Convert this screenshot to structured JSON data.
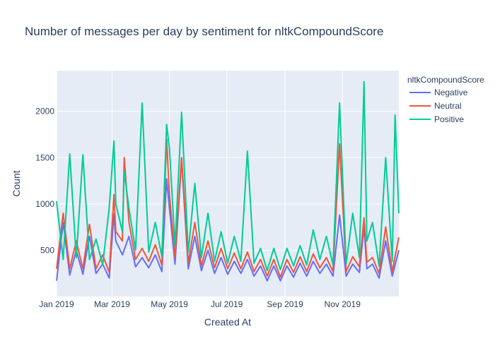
{
  "chart_data": {
    "type": "line",
    "title": "Number of messages per day by sentiment for nltkCompoundScore",
    "xlabel": "Created At",
    "ylabel": "Count",
    "legend_title": "nltkCompoundScore",
    "x_ticks": [
      "Jan 2019",
      "Mar 2019",
      "May 2019",
      "Jul 2019",
      "Sep 2019",
      "Nov 2019"
    ],
    "y_ticks": [
      "500",
      "1000",
      "1500",
      "2000"
    ],
    "xlim": [
      "2019-01-01",
      "2019-12-31"
    ],
    "ylim": [
      0,
      2440
    ],
    "grid": true,
    "legend_position": "right",
    "plot_background": "#E5ECF6",
    "series": [
      {
        "name": "Negative",
        "color": "#636EFA",
        "points": [
          [
            "2019-01-01",
            170
          ],
          [
            "2019-01-08",
            800
          ],
          [
            "2019-01-15",
            230
          ],
          [
            "2019-01-22",
            500
          ],
          [
            "2019-01-29",
            240
          ],
          [
            "2019-02-05",
            650
          ],
          [
            "2019-02-12",
            250
          ],
          [
            "2019-02-19",
            350
          ],
          [
            "2019-02-26",
            200
          ],
          [
            "2019-03-03",
            890
          ],
          [
            "2019-03-05",
            600
          ],
          [
            "2019-03-12",
            450
          ],
          [
            "2019-03-19",
            650
          ],
          [
            "2019-03-26",
            320
          ],
          [
            "2019-04-02",
            420
          ],
          [
            "2019-04-09",
            310
          ],
          [
            "2019-04-16",
            450
          ],
          [
            "2019-04-23",
            270
          ],
          [
            "2019-04-28",
            1270
          ],
          [
            "2019-05-01",
            950
          ],
          [
            "2019-05-07",
            350
          ],
          [
            "2019-05-14",
            1480
          ],
          [
            "2019-05-21",
            300
          ],
          [
            "2019-05-28",
            650
          ],
          [
            "2019-06-04",
            280
          ],
          [
            "2019-06-11",
            500
          ],
          [
            "2019-06-18",
            250
          ],
          [
            "2019-06-25",
            420
          ],
          [
            "2019-07-02",
            240
          ],
          [
            "2019-07-09",
            380
          ],
          [
            "2019-07-16",
            250
          ],
          [
            "2019-07-23",
            400
          ],
          [
            "2019-07-30",
            220
          ],
          [
            "2019-08-06",
            330
          ],
          [
            "2019-08-13",
            170
          ],
          [
            "2019-08-20",
            330
          ],
          [
            "2019-08-27",
            170
          ],
          [
            "2019-09-03",
            330
          ],
          [
            "2019-09-10",
            210
          ],
          [
            "2019-09-17",
            360
          ],
          [
            "2019-09-24",
            220
          ],
          [
            "2019-10-01",
            380
          ],
          [
            "2019-10-08",
            250
          ],
          [
            "2019-10-15",
            350
          ],
          [
            "2019-10-22",
            220
          ],
          [
            "2019-10-29",
            880
          ],
          [
            "2019-11-05",
            220
          ],
          [
            "2019-11-12",
            350
          ],
          [
            "2019-11-19",
            260
          ],
          [
            "2019-11-24",
            750
          ],
          [
            "2019-11-27",
            300
          ],
          [
            "2019-12-03",
            350
          ],
          [
            "2019-12-10",
            200
          ],
          [
            "2019-12-17",
            600
          ],
          [
            "2019-12-24",
            220
          ],
          [
            "2019-12-31",
            500
          ]
        ]
      },
      {
        "name": "Neutral",
        "color": "#EF553B",
        "points": [
          [
            "2019-01-01",
            300
          ],
          [
            "2019-01-08",
            900
          ],
          [
            "2019-01-15",
            300
          ],
          [
            "2019-01-22",
            600
          ],
          [
            "2019-01-29",
            300
          ],
          [
            "2019-02-05",
            780
          ],
          [
            "2019-02-12",
            300
          ],
          [
            "2019-02-19",
            450
          ],
          [
            "2019-02-26",
            260
          ],
          [
            "2019-03-03",
            1100
          ],
          [
            "2019-03-05",
            700
          ],
          [
            "2019-03-12",
            600
          ],
          [
            "2019-03-14",
            1500
          ],
          [
            "2019-03-19",
            800
          ],
          [
            "2019-03-26",
            400
          ],
          [
            "2019-04-02",
            520
          ],
          [
            "2019-04-09",
            380
          ],
          [
            "2019-04-16",
            560
          ],
          [
            "2019-04-23",
            340
          ],
          [
            "2019-04-28",
            1700
          ],
          [
            "2019-05-01",
            1100
          ],
          [
            "2019-05-07",
            420
          ],
          [
            "2019-05-14",
            1500
          ],
          [
            "2019-05-21",
            360
          ],
          [
            "2019-05-28",
            800
          ],
          [
            "2019-06-04",
            330
          ],
          [
            "2019-06-11",
            600
          ],
          [
            "2019-06-18",
            310
          ],
          [
            "2019-06-25",
            520
          ],
          [
            "2019-07-02",
            300
          ],
          [
            "2019-07-09",
            470
          ],
          [
            "2019-07-16",
            300
          ],
          [
            "2019-07-23",
            480
          ],
          [
            "2019-07-30",
            270
          ],
          [
            "2019-08-06",
            400
          ],
          [
            "2019-08-13",
            220
          ],
          [
            "2019-08-20",
            400
          ],
          [
            "2019-08-27",
            210
          ],
          [
            "2019-09-03",
            400
          ],
          [
            "2019-09-10",
            260
          ],
          [
            "2019-09-17",
            430
          ],
          [
            "2019-09-24",
            270
          ],
          [
            "2019-10-01",
            460
          ],
          [
            "2019-10-08",
            310
          ],
          [
            "2019-10-15",
            420
          ],
          [
            "2019-10-22",
            270
          ],
          [
            "2019-10-29",
            1650
          ],
          [
            "2019-11-05",
            270
          ],
          [
            "2019-11-12",
            430
          ],
          [
            "2019-11-19",
            320
          ],
          [
            "2019-11-24",
            850
          ],
          [
            "2019-11-27",
            370
          ],
          [
            "2019-12-03",
            420
          ],
          [
            "2019-12-10",
            250
          ],
          [
            "2019-12-17",
            750
          ],
          [
            "2019-12-24",
            270
          ],
          [
            "2019-12-31",
            640
          ]
        ]
      },
      {
        "name": "Positive",
        "color": "#00CC96",
        "points": [
          [
            "2019-01-01",
            1030
          ],
          [
            "2019-01-08",
            400
          ],
          [
            "2019-01-15",
            1540
          ],
          [
            "2019-01-22",
            420
          ],
          [
            "2019-01-29",
            1530
          ],
          [
            "2019-02-05",
            400
          ],
          [
            "2019-02-12",
            620
          ],
          [
            "2019-02-19",
            340
          ],
          [
            "2019-02-26",
            960
          ],
          [
            "2019-03-03",
            1680
          ],
          [
            "2019-03-05",
            1000
          ],
          [
            "2019-03-12",
            700
          ],
          [
            "2019-03-14",
            1350
          ],
          [
            "2019-03-19",
            950
          ],
          [
            "2019-03-26",
            500
          ],
          [
            "2019-04-02",
            2090
          ],
          [
            "2019-04-09",
            480
          ],
          [
            "2019-04-16",
            800
          ],
          [
            "2019-04-23",
            430
          ],
          [
            "2019-04-28",
            1860
          ],
          [
            "2019-05-01",
            1600
          ],
          [
            "2019-05-07",
            550
          ],
          [
            "2019-05-14",
            1990
          ],
          [
            "2019-05-21",
            480
          ],
          [
            "2019-05-28",
            1220
          ],
          [
            "2019-06-04",
            420
          ],
          [
            "2019-06-11",
            900
          ],
          [
            "2019-06-18",
            380
          ],
          [
            "2019-06-25",
            700
          ],
          [
            "2019-07-02",
            360
          ],
          [
            "2019-07-09",
            650
          ],
          [
            "2019-07-16",
            380
          ],
          [
            "2019-07-23",
            1570
          ],
          [
            "2019-07-30",
            360
          ],
          [
            "2019-08-06",
            520
          ],
          [
            "2019-08-13",
            280
          ],
          [
            "2019-08-20",
            520
          ],
          [
            "2019-08-27",
            290
          ],
          [
            "2019-09-03",
            520
          ],
          [
            "2019-09-10",
            330
          ],
          [
            "2019-09-17",
            550
          ],
          [
            "2019-09-24",
            340
          ],
          [
            "2019-10-01",
            720
          ],
          [
            "2019-10-08",
            400
          ],
          [
            "2019-10-15",
            650
          ],
          [
            "2019-10-22",
            340
          ],
          [
            "2019-10-29",
            2090
          ],
          [
            "2019-11-05",
            350
          ],
          [
            "2019-11-12",
            900
          ],
          [
            "2019-11-19",
            420
          ],
          [
            "2019-11-24",
            2320
          ],
          [
            "2019-11-27",
            600
          ],
          [
            "2019-12-03",
            800
          ],
          [
            "2019-12-10",
            330
          ],
          [
            "2019-12-17",
            1500
          ],
          [
            "2019-12-24",
            380
          ],
          [
            "2019-12-27",
            1960
          ],
          [
            "2019-12-31",
            900
          ]
        ]
      }
    ]
  }
}
